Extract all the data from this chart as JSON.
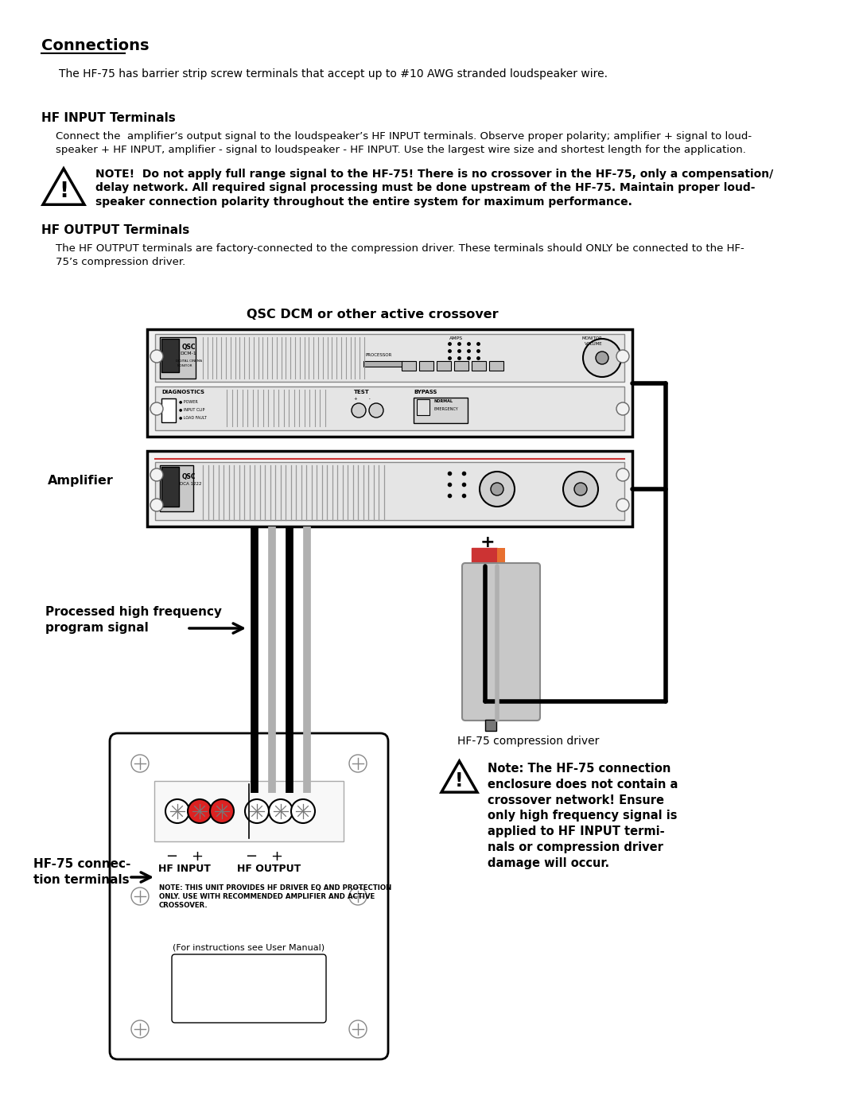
{
  "bg_color": "#ffffff",
  "title": "Connections",
  "subtitle": "The HF-75 has barrier strip screw terminals that accept up to #10 AWG stranded loudspeaker wire.",
  "hf_input_title": "HF INPUT Terminals",
  "hf_input_body_1": "Connect the  amplifier’s output signal to the loudspeaker’s HF INPUT terminals. Observe proper polarity; amplifier + signal to loud-",
  "hf_input_body_2": "speaker + HF INPUT, amplifier - signal to loudspeaker - HF INPUT. Use the largest wire size and shortest length for the application.",
  "note_bold_1": "NOTE!  Do not apply full range signal to the HF-75! There is no crossover in the HF-75, only a compensation/",
  "note_bold_2": "delay network. All required signal processing must be done upstream of the HF-75. Maintain proper loud-",
  "note_bold_3": "speaker connection polarity throughout the entire system for maximum performance.",
  "hf_output_title": "HF OUTPUT Terminals",
  "hf_output_body_1": "The HF OUTPUT terminals are factory-connected to the compression driver. These terminals should ONLY be connected to the HF-",
  "hf_output_body_2": "75’s compression driver.",
  "diagram_label_crossover": "QSC DCM or other active crossover",
  "diagram_label_amplifier": "Amplifier",
  "diagram_label_signal": "Processed high frequency\nprogram signal",
  "diagram_label_hf75_conn": "HF-75 connec-\ntion terminals",
  "diagram_label_hf75_comp": "HF-75 compression driver",
  "hf_input_label": "HF INPUT",
  "hf_output_label": "HF OUTPUT",
  "note_small_1": "NOTE: THIS UNIT PROVIDES HF DRIVER EQ AND PROTECTION",
  "note_small_2": "ONLY. USE WITH RECOMMENDED AMPLIFIER AND ACTIVE",
  "note_small_3": "CROSSOVER.",
  "note_for_instructions": "(For instructions see User Manual)",
  "note2_text": "Note: The HF-75 connection\nenclosure does not contain a\ncrossover network! Ensure\nonly high frequency signal is\napplied to HF INPUT termi-\nnals or compression driver\ndamage will occur."
}
